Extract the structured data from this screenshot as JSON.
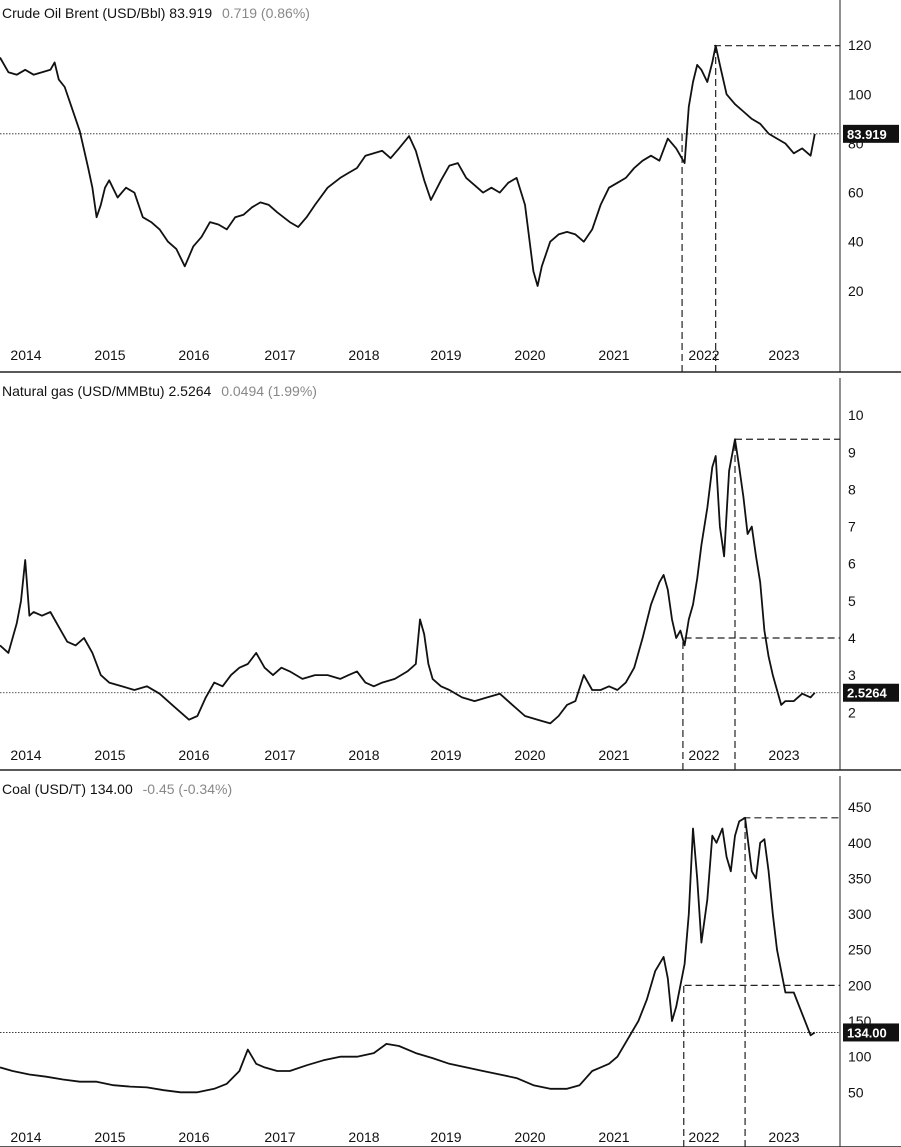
{
  "colors": {
    "line": "#111111",
    "tag_bg": "#111111",
    "tag_text": "#ffffff",
    "change": "#888888",
    "frame": "#222222",
    "guide": "#222222"
  },
  "chart_data": [
    {
      "type": "line",
      "header": {
        "name": "Crude Oil Brent (USD/Bbl)",
        "last": "83.919",
        "change": "0.719 (0.86%)"
      },
      "ylim": [
        0,
        127
      ],
      "yticks": [
        20,
        40,
        60,
        80,
        100,
        120
      ],
      "ytick_labels": [
        "20",
        "40",
        "60",
        "80",
        "100",
        "120"
      ],
      "xlim": [
        2013.85,
        2023.85
      ],
      "xticks": [
        2014,
        2015,
        2016,
        2017,
        2018,
        2019,
        2020,
        2021,
        2022,
        2023
      ],
      "xtick_labels": [
        "2014",
        "2015",
        "2016",
        "2017",
        "2018",
        "2019",
        "2020",
        "2021",
        "2022",
        "2023"
      ],
      "grid": false,
      "last_value": 83.919,
      "last_label": "83.919",
      "guides": [
        {
          "kind": "h",
          "y": 119.8,
          "from": 2022.35,
          "to": 2023.85
        },
        {
          "kind": "v",
          "x": 2021.97,
          "from": 0,
          "to": 83.919
        },
        {
          "kind": "v",
          "x": 2022.37,
          "from": 0,
          "to": 119.8
        }
      ],
      "series": [
        {
          "x": [
            2013.85,
            2013.95,
            2014.05,
            2014.15,
            2014.25,
            2014.35,
            2014.45,
            2014.5,
            2014.55,
            2014.62,
            2014.7,
            2014.8,
            2014.9,
            2014.95,
            2015.0,
            2015.05,
            2015.1,
            2015.15,
            2015.25,
            2015.35,
            2015.45,
            2015.55,
            2015.65,
            2015.75,
            2015.85,
            2015.95,
            2016.05,
            2016.1,
            2016.15,
            2016.25,
            2016.35,
            2016.45,
            2016.55,
            2016.65,
            2016.75,
            2016.85,
            2016.95,
            2017.05,
            2017.15,
            2017.3,
            2017.4,
            2017.5,
            2017.6,
            2017.75,
            2017.9,
            2018.0,
            2018.1,
            2018.2,
            2018.3,
            2018.4,
            2018.5,
            2018.6,
            2018.72,
            2018.8,
            2018.9,
            2018.98,
            2019.1,
            2019.2,
            2019.3,
            2019.4,
            2019.5,
            2019.6,
            2019.7,
            2019.8,
            2019.9,
            2020.0,
            2020.1,
            2020.2,
            2020.25,
            2020.3,
            2020.4,
            2020.5,
            2020.6,
            2020.7,
            2020.8,
            2020.9,
            2021.0,
            2021.1,
            2021.2,
            2021.3,
            2021.4,
            2021.5,
            2021.6,
            2021.7,
            2021.8,
            2021.9,
            2022.0,
            2022.05,
            2022.1,
            2022.15,
            2022.2,
            2022.27,
            2022.33,
            2022.37,
            2022.42,
            2022.5,
            2022.6,
            2022.7,
            2022.8,
            2022.9,
            2023.0,
            2023.1,
            2023.2,
            2023.3,
            2023.4,
            2023.5,
            2023.55
          ],
          "y": [
            115,
            109,
            108,
            110,
            108,
            109,
            110,
            113,
            106,
            103,
            95,
            85,
            70,
            62,
            50,
            55,
            62,
            65,
            58,
            62,
            60,
            50,
            48,
            45,
            40,
            37,
            30,
            34,
            38,
            42,
            48,
            47,
            45,
            50,
            51,
            54,
            56,
            55,
            52,
            48,
            46,
            50,
            55,
            62,
            66,
            68,
            70,
            75,
            76,
            77,
            74,
            78,
            83,
            77,
            65,
            57,
            65,
            71,
            72,
            66,
            63,
            60,
            62,
            60,
            64,
            66,
            55,
            28,
            22,
            30,
            40,
            43,
            44,
            43,
            40,
            45,
            55,
            62,
            64,
            66,
            70,
            73,
            75,
            73,
            82,
            78,
            72,
            95,
            105,
            112,
            110,
            105,
            113,
            119.8,
            112,
            100,
            96,
            93,
            90,
            88,
            84,
            82,
            80,
            76,
            78,
            75,
            83.9
          ]
        }
      ]
    },
    {
      "type": "line",
      "header": {
        "name": "Natural gas (USD/MMBtu)",
        "last": "2.5264",
        "change": "0.0494 (1.99%)"
      },
      "ylim": [
        1.2,
        10.3
      ],
      "yticks": [
        2,
        3,
        4,
        5,
        6,
        7,
        8,
        9,
        10
      ],
      "ytick_labels": [
        "2",
        "3",
        "4",
        "5",
        "6",
        "7",
        "8",
        "9",
        "10"
      ],
      "xlim": [
        2013.85,
        2023.85
      ],
      "xticks": [
        2014,
        2015,
        2016,
        2017,
        2018,
        2019,
        2020,
        2021,
        2022,
        2023
      ],
      "xtick_labels": [
        "2014",
        "2015",
        "2016",
        "2017",
        "2018",
        "2019",
        "2020",
        "2021",
        "2022",
        "2023"
      ],
      "grid": false,
      "last_value": 2.5264,
      "last_label": "2.5264",
      "guides": [
        {
          "kind": "h",
          "y": 9.35,
          "from": 2022.6,
          "to": 2023.85
        },
        {
          "kind": "h",
          "y": 4.0,
          "from": 2022.0,
          "to": 2023.85
        },
        {
          "kind": "v",
          "x": 2021.98,
          "from": 1.2,
          "to": 4.0
        },
        {
          "kind": "v",
          "x": 2022.6,
          "from": 1.2,
          "to": 9.35
        }
      ],
      "series": [
        {
          "x": [
            2013.85,
            2013.95,
            2014.05,
            2014.1,
            2014.15,
            2014.2,
            2014.25,
            2014.35,
            2014.45,
            2014.55,
            2014.65,
            2014.75,
            2014.85,
            2014.95,
            2015.05,
            2015.15,
            2015.3,
            2015.45,
            2015.6,
            2015.75,
            2015.9,
            2016.0,
            2016.1,
            2016.2,
            2016.3,
            2016.4,
            2016.5,
            2016.6,
            2016.7,
            2016.8,
            2016.9,
            2017.0,
            2017.1,
            2017.2,
            2017.3,
            2017.45,
            2017.6,
            2017.75,
            2017.9,
            2018.0,
            2018.1,
            2018.2,
            2018.3,
            2018.4,
            2018.55,
            2018.7,
            2018.8,
            2018.85,
            2018.9,
            2018.95,
            2019.0,
            2019.1,
            2019.2,
            2019.35,
            2019.5,
            2019.65,
            2019.8,
            2019.95,
            2020.1,
            2020.25,
            2020.4,
            2020.5,
            2020.6,
            2020.7,
            2020.8,
            2020.9,
            2021.0,
            2021.1,
            2021.2,
            2021.3,
            2021.4,
            2021.5,
            2021.6,
            2021.7,
            2021.75,
            2021.8,
            2021.85,
            2021.9,
            2021.95,
            2022.0,
            2022.05,
            2022.1,
            2022.15,
            2022.2,
            2022.27,
            2022.33,
            2022.37,
            2022.42,
            2022.47,
            2022.53,
            2022.6,
            2022.65,
            2022.7,
            2022.75,
            2022.8,
            2022.85,
            2022.9,
            2022.95,
            2023.0,
            2023.05,
            2023.1,
            2023.15,
            2023.2,
            2023.3,
            2023.4,
            2023.5,
            2023.55
          ],
          "y": [
            3.8,
            3.6,
            4.4,
            5.0,
            6.1,
            4.6,
            4.7,
            4.6,
            4.7,
            4.3,
            3.9,
            3.8,
            4.0,
            3.6,
            3.0,
            2.8,
            2.7,
            2.6,
            2.7,
            2.5,
            2.2,
            2.0,
            1.8,
            1.9,
            2.4,
            2.8,
            2.7,
            3.0,
            3.2,
            3.3,
            3.6,
            3.2,
            3.0,
            3.2,
            3.1,
            2.9,
            3.0,
            3.0,
            2.9,
            3.0,
            3.1,
            2.8,
            2.7,
            2.8,
            2.9,
            3.1,
            3.3,
            4.5,
            4.1,
            3.3,
            2.9,
            2.7,
            2.6,
            2.4,
            2.3,
            2.4,
            2.5,
            2.2,
            1.9,
            1.8,
            1.7,
            1.9,
            2.2,
            2.3,
            3.0,
            2.6,
            2.6,
            2.7,
            2.6,
            2.8,
            3.2,
            4.0,
            4.9,
            5.5,
            5.7,
            5.3,
            4.5,
            4.0,
            4.2,
            3.8,
            4.5,
            4.9,
            5.6,
            6.5,
            7.5,
            8.6,
            8.9,
            7.0,
            6.2,
            8.5,
            9.35,
            8.6,
            7.8,
            6.8,
            7.0,
            6.2,
            5.5,
            4.2,
            3.5,
            3.0,
            2.6,
            2.2,
            2.3,
            2.3,
            2.5,
            2.4,
            2.5264
          ]
        }
      ]
    },
    {
      "type": "line",
      "header": {
        "name": "Coal (USD/T)",
        "last": "134.00",
        "change": "-0.45 (-0.34%)"
      },
      "ylim": [
        0,
        460
      ],
      "yticks": [
        50,
        100,
        150,
        200,
        250,
        300,
        350,
        400,
        450
      ],
      "ytick_labels": [
        "50",
        "100",
        "150",
        "200",
        "250",
        "300",
        "350",
        "400",
        "450"
      ],
      "xlim": [
        2013.85,
        2023.85
      ],
      "xticks": [
        2014,
        2015,
        2016,
        2017,
        2018,
        2019,
        2020,
        2021,
        2022,
        2023
      ],
      "xtick_labels": [
        "2014",
        "2015",
        "2016",
        "2017",
        "2018",
        "2019",
        "2020",
        "2021",
        "2022",
        "2023"
      ],
      "grid": false,
      "last_value": 134.0,
      "last_label": "134.00",
      "guides": [
        {
          "kind": "h",
          "y": 435,
          "from": 2022.7,
          "to": 2023.85
        },
        {
          "kind": "h",
          "y": 200,
          "from": 2022.0,
          "to": 2023.85
        },
        {
          "kind": "v",
          "x": 2021.99,
          "from": 0,
          "to": 200
        },
        {
          "kind": "v",
          "x": 2022.72,
          "from": 0,
          "to": 435
        }
      ],
      "series": [
        {
          "x": [
            2013.85,
            2014.0,
            2014.2,
            2014.4,
            2014.6,
            2014.8,
            2015.0,
            2015.2,
            2015.4,
            2015.6,
            2015.8,
            2016.0,
            2016.2,
            2016.4,
            2016.55,
            2016.7,
            2016.8,
            2016.9,
            2017.0,
            2017.15,
            2017.3,
            2017.5,
            2017.7,
            2017.9,
            2018.1,
            2018.3,
            2018.45,
            2018.6,
            2018.8,
            2019.0,
            2019.2,
            2019.4,
            2019.6,
            2019.8,
            2020.0,
            2020.2,
            2020.4,
            2020.6,
            2020.75,
            2020.9,
            2021.0,
            2021.1,
            2021.2,
            2021.3,
            2021.45,
            2021.55,
            2021.65,
            2021.75,
            2021.8,
            2021.85,
            2021.9,
            2021.95,
            2022.0,
            2022.05,
            2022.1,
            2022.15,
            2022.2,
            2022.27,
            2022.33,
            2022.38,
            2022.45,
            2022.5,
            2022.55,
            2022.6,
            2022.65,
            2022.72,
            2022.8,
            2022.85,
            2022.9,
            2022.95,
            2023.0,
            2023.05,
            2023.1,
            2023.2,
            2023.3,
            2023.4,
            2023.5,
            2023.55
          ],
          "y": [
            85,
            80,
            75,
            72,
            68,
            65,
            65,
            60,
            58,
            57,
            53,
            50,
            50,
            55,
            62,
            80,
            110,
            90,
            85,
            80,
            80,
            88,
            95,
            100,
            100,
            105,
            118,
            115,
            105,
            98,
            90,
            85,
            80,
            75,
            70,
            60,
            55,
            55,
            60,
            80,
            85,
            90,
            100,
            120,
            150,
            180,
            220,
            240,
            210,
            150,
            170,
            200,
            230,
            300,
            420,
            350,
            260,
            320,
            410,
            400,
            420,
            380,
            360,
            410,
            430,
            435,
            360,
            350,
            400,
            405,
            360,
            300,
            250,
            190,
            190,
            160,
            130,
            134
          ]
        }
      ]
    }
  ]
}
